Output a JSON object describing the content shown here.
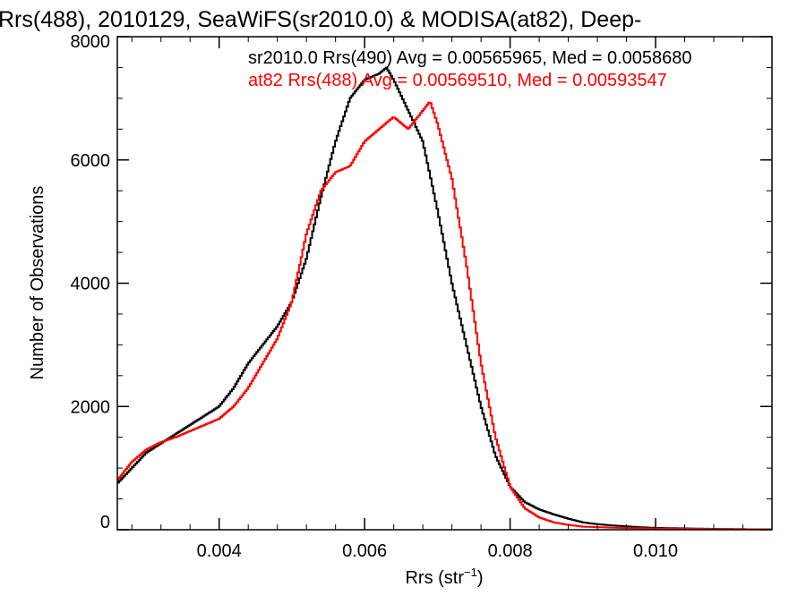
{
  "chart_data": {
    "type": "line",
    "title": "Rrs(488), 2010129, SeaWiFS(sr2010.0) & MODISA(at82), Deep-",
    "xlabel": "Rrs (str",
    "xlabel_sup": "−1",
    "xlabel_close": ")",
    "ylabel": "Number of Observations",
    "xlim": [
      0.0026,
      0.0116
    ],
    "ylim": [
      0,
      8000
    ],
    "grid": false,
    "x_ticks": [
      0.004,
      0.006,
      0.008,
      0.01
    ],
    "x_tick_labels": [
      "0.004",
      "0.006",
      "0.008",
      "0.010"
    ],
    "y_ticks": [
      0,
      2000,
      4000,
      6000,
      8000
    ],
    "y_tick_labels": [
      "0",
      "2000",
      "4000",
      "6000",
      "8000"
    ],
    "legend_placement": "top-right",
    "annotations": [
      {
        "text": "sr2010.0 Rrs(490) Avg = 0.00565965, Med = 0.0058680",
        "color": "#000000"
      },
      {
        "text": "at82 Rrs(488) Avg = 0.00569510, Med = 0.00593547",
        "color": "#ff0000"
      }
    ],
    "series": [
      {
        "name": "sr2010.0",
        "color": "#000000",
        "x": [
          0.0026,
          0.0028,
          0.003,
          0.0032,
          0.0034,
          0.0036,
          0.0038,
          0.004,
          0.0042,
          0.0044,
          0.0046,
          0.0048,
          0.005,
          0.0052,
          0.0054,
          0.0056,
          0.0058,
          0.006,
          0.0062,
          0.0063,
          0.0064,
          0.0066,
          0.0068,
          0.007,
          0.0072,
          0.0074,
          0.0076,
          0.0078,
          0.008,
          0.0082,
          0.0084,
          0.0086,
          0.0088,
          0.009,
          0.0092,
          0.0094,
          0.0096,
          0.0098,
          0.01,
          0.0105,
          0.011,
          0.0116
        ],
        "y": [
          750,
          1000,
          1250,
          1400,
          1550,
          1700,
          1850,
          2000,
          2300,
          2700,
          3000,
          3300,
          3700,
          4400,
          5400,
          6300,
          7000,
          7300,
          7400,
          7500,
          7300,
          6800,
          6300,
          5200,
          4000,
          3000,
          2000,
          1200,
          700,
          450,
          330,
          250,
          180,
          120,
          90,
          70,
          55,
          40,
          30,
          20,
          10,
          5
        ]
      },
      {
        "name": "at82",
        "color": "#ff0000",
        "x": [
          0.0026,
          0.0028,
          0.003,
          0.0032,
          0.0034,
          0.0036,
          0.0038,
          0.004,
          0.0042,
          0.0044,
          0.0046,
          0.0048,
          0.005,
          0.0052,
          0.0054,
          0.0056,
          0.0058,
          0.006,
          0.0062,
          0.0064,
          0.0066,
          0.0068,
          0.0069,
          0.007,
          0.0072,
          0.0074,
          0.0076,
          0.0078,
          0.008,
          0.0082,
          0.0084,
          0.0086,
          0.0088,
          0.009,
          0.0095,
          0.01,
          0.011,
          0.0116
        ],
        "y": [
          800,
          1100,
          1300,
          1420,
          1500,
          1600,
          1700,
          1800,
          2000,
          2300,
          2700,
          3100,
          3700,
          4800,
          5500,
          5800,
          5900,
          6300,
          6500,
          6700,
          6500,
          6800,
          6950,
          6600,
          5700,
          4300,
          2700,
          1500,
          700,
          350,
          200,
          120,
          80,
          50,
          30,
          20,
          10,
          5
        ]
      }
    ]
  }
}
